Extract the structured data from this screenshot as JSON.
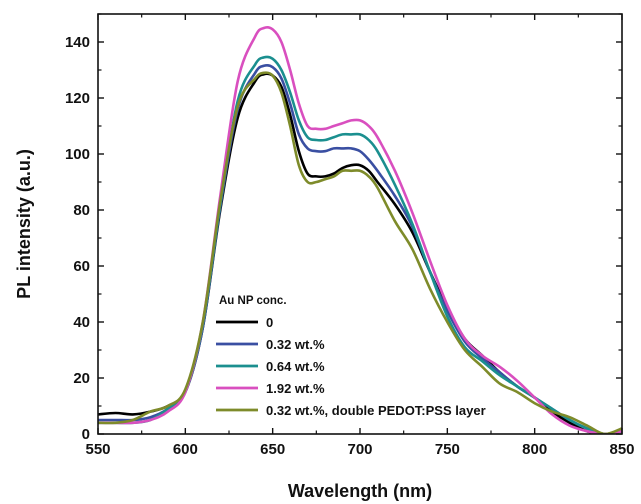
{
  "chart_data": {
    "type": "line",
    "xlabel": "Wavelength (nm)",
    "ylabel": "PL intensity (a.u.)",
    "xlim": [
      550,
      850
    ],
    "ylim": [
      0,
      150
    ],
    "x_ticks": [
      550,
      600,
      650,
      700,
      750,
      800,
      850
    ],
    "y_ticks": [
      0,
      20,
      40,
      60,
      80,
      100,
      120,
      140
    ],
    "grid": false,
    "legend": {
      "title": "Au NP conc.",
      "placement": "lower-center"
    },
    "series": [
      {
        "name": "0",
        "color": "#000000",
        "x": [
          550,
          560,
          570,
          580,
          590,
          600,
          610,
          620,
          630,
          640,
          645,
          650,
          655,
          660,
          665,
          670,
          675,
          680,
          685,
          690,
          695,
          700,
          705,
          710,
          720,
          730,
          740,
          750,
          760,
          770,
          780,
          790,
          800,
          810,
          820,
          830,
          840,
          850
        ],
        "y": [
          7,
          7.5,
          7,
          8,
          10,
          15,
          38,
          80,
          113,
          126,
          128.5,
          128,
          124,
          114,
          101,
          93,
          92,
          92,
          93,
          95,
          96,
          96,
          94,
          90,
          82,
          72,
          58,
          45,
          34,
          28,
          22,
          17,
          13,
          8,
          4,
          1,
          0,
          1
        ]
      },
      {
        "name": "0.32 wt.%",
        "color": "#3a4fa2",
        "x": [
          550,
          560,
          570,
          580,
          590,
          600,
          610,
          620,
          630,
          640,
          645,
          650,
          655,
          660,
          665,
          670,
          675,
          680,
          685,
          690,
          695,
          700,
          705,
          710,
          720,
          730,
          740,
          750,
          760,
          770,
          780,
          790,
          800,
          810,
          820,
          830,
          840,
          850
        ],
        "y": [
          5,
          5,
          5,
          6,
          9,
          15,
          38,
          81,
          116,
          129,
          131.5,
          131,
          127,
          118,
          107,
          102,
          101,
          101,
          102,
          102,
          102,
          101,
          98,
          94,
          85,
          74,
          58,
          44,
          33,
          27,
          22,
          17,
          13,
          9,
          5,
          2,
          0,
          1
        ]
      },
      {
        "name": "0.64 wt.%",
        "color": "#1b8f8f",
        "x": [
          550,
          560,
          570,
          580,
          590,
          600,
          610,
          620,
          630,
          640,
          645,
          650,
          655,
          660,
          665,
          670,
          675,
          680,
          685,
          690,
          695,
          700,
          705,
          710,
          720,
          730,
          740,
          750,
          760,
          770,
          780,
          790,
          800,
          810,
          820,
          830,
          840,
          850
        ],
        "y": [
          4,
          4,
          4,
          5,
          9,
          15,
          39,
          82,
          119,
          132,
          134.5,
          134,
          130,
          122,
          112,
          106,
          105,
          105,
          106,
          107,
          107,
          107,
          105,
          101,
          89,
          75,
          58,
          42,
          31,
          26,
          21,
          17,
          13,
          9,
          5,
          2,
          0,
          1
        ]
      },
      {
        "name": "1.92 wt.%",
        "color": "#d94fbf",
        "x": [
          550,
          560,
          570,
          580,
          590,
          600,
          610,
          620,
          630,
          640,
          645,
          650,
          655,
          660,
          665,
          670,
          675,
          680,
          685,
          690,
          695,
          700,
          705,
          710,
          720,
          730,
          740,
          750,
          760,
          770,
          780,
          790,
          800,
          810,
          820,
          830,
          840,
          850
        ],
        "y": [
          4,
          4,
          4,
          5,
          8,
          15,
          40,
          85,
          126,
          142,
          145,
          144.5,
          140,
          130,
          118,
          110,
          109,
          109,
          110,
          111,
          112,
          112,
          110,
          106,
          94,
          79,
          62,
          46,
          34,
          28,
          24,
          19,
          13,
          7,
          3,
          1,
          0,
          1
        ]
      },
      {
        "name": "0.32 wt.%, double PEDOT:PSS layer",
        "color": "#7e8b2a",
        "x": [
          550,
          560,
          570,
          580,
          590,
          600,
          610,
          620,
          630,
          640,
          645,
          650,
          655,
          660,
          665,
          670,
          675,
          680,
          685,
          690,
          695,
          700,
          705,
          710,
          720,
          730,
          740,
          750,
          760,
          770,
          780,
          790,
          800,
          810,
          820,
          830,
          840,
          850
        ],
        "y": [
          4,
          4,
          5,
          8,
          10,
          16,
          40,
          83,
          117,
          127,
          129,
          128,
          122,
          110,
          96,
          90,
          90,
          91,
          92,
          94,
          94,
          94,
          92,
          88,
          76,
          66,
          52,
          40,
          30,
          24,
          18,
          15,
          11,
          8,
          6,
          3,
          0,
          2
        ]
      }
    ]
  }
}
